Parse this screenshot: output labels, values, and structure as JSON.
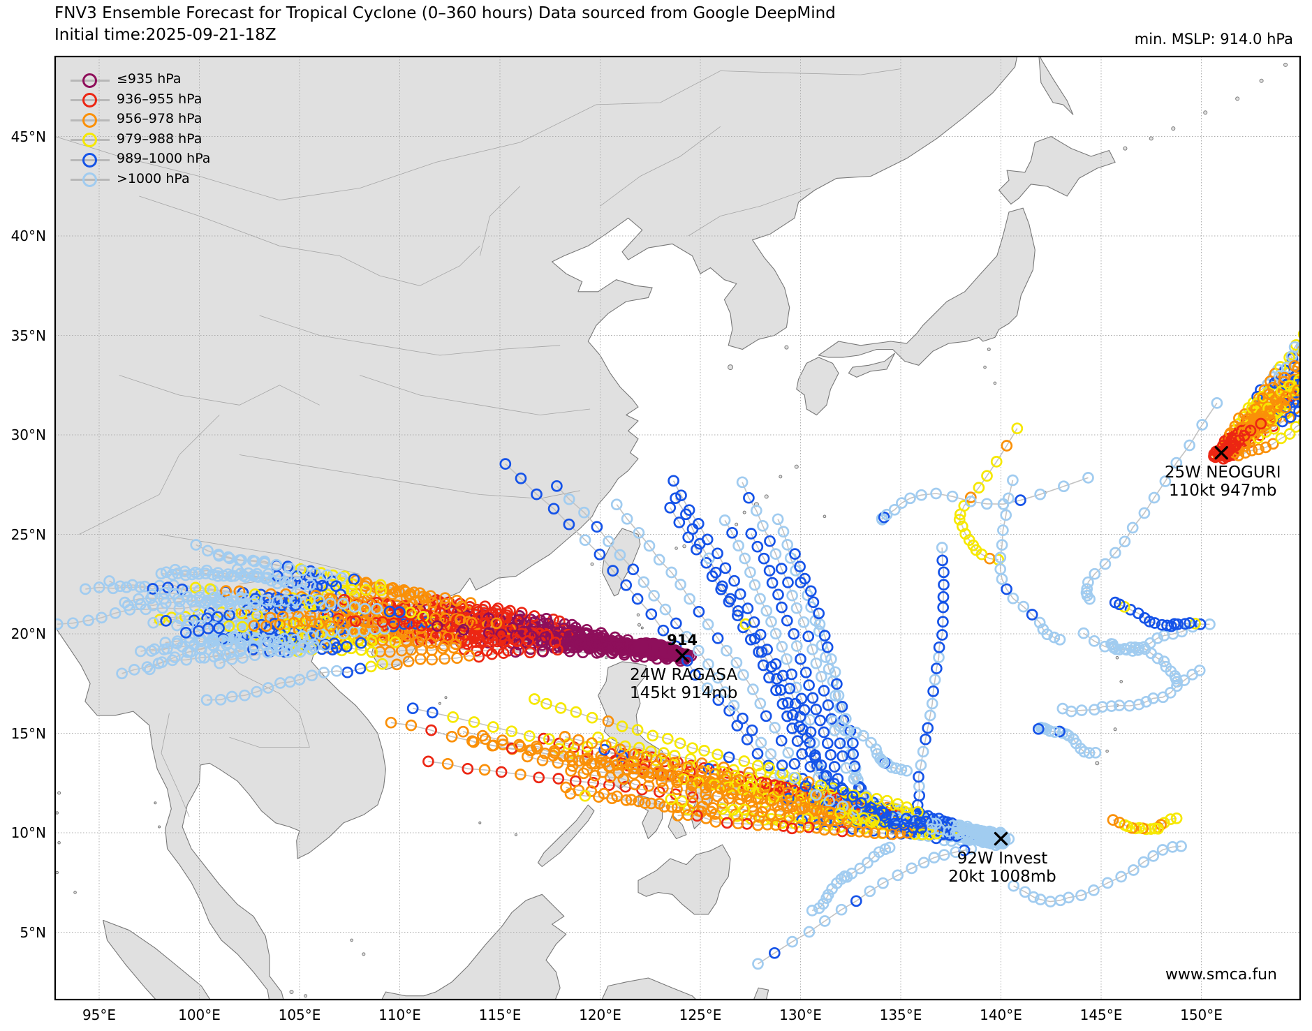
{
  "header": {
    "title": "FNV3 Ensemble Forecast for Tropical Cyclone (0–360 hours) Data sourced from Google DeepMind",
    "initial_time": "Initial time:2025-09-21-18Z",
    "min_mslp": "min. MSLP: 914.0 hPa"
  },
  "legend": {
    "entries": [
      {
        "label": "≤935 hPa",
        "color": "#8E0F5B",
        "max": 935
      },
      {
        "label": "936–955 hPa",
        "color": "#EC2613",
        "max": 955
      },
      {
        "label": "956–978 hPa",
        "color": "#FA9008",
        "max": 978
      },
      {
        "label": "979–988 hPa",
        "color": "#F6E800",
        "max": 988
      },
      {
        "label": "989–1000 hPa",
        "color": "#1553E8",
        "max": 1000
      },
      {
        "label": ">1000 hPa",
        "color": "#A1CCF0",
        "max": null
      }
    ]
  },
  "axes": {
    "lon_ticks": [
      {
        "label": "95°E",
        "value": 95
      },
      {
        "label": "100°E",
        "value": 100
      },
      {
        "label": "105°E",
        "value": 105
      },
      {
        "label": "110°E",
        "value": 110
      },
      {
        "label": "115°E",
        "value": 115
      },
      {
        "label": "120°E",
        "value": 120
      },
      {
        "label": "125°E",
        "value": 125
      },
      {
        "label": "130°E",
        "value": 130
      },
      {
        "label": "135°E",
        "value": 135
      },
      {
        "label": "140°E",
        "value": 140
      },
      {
        "label": "145°E",
        "value": 145
      },
      {
        "label": "150°E",
        "value": 150
      }
    ],
    "lat_ticks": [
      {
        "label": "5°N",
        "value": 5
      },
      {
        "label": "10°N",
        "value": 10
      },
      {
        "label": "15°N",
        "value": 15
      },
      {
        "label": "20°N",
        "value": 20
      },
      {
        "label": "25°N",
        "value": 25
      },
      {
        "label": "30°N",
        "value": 30
      },
      {
        "label": "35°N",
        "value": 35
      },
      {
        "label": "40°N",
        "value": 40
      },
      {
        "label": "45°N",
        "value": 45
      }
    ]
  },
  "storms": [
    {
      "id": "ragasa",
      "marker_label": "914",
      "lines": [
        "24W RAGASA",
        "145kt 914mb"
      ],
      "x_lon": 124.1,
      "x_lat": 18.9
    },
    {
      "id": "neoguri",
      "marker_label": "",
      "lines": [
        "25W NEOGURI",
        "110kt 947mb"
      ],
      "x_lon": 151.0,
      "x_lat": 29.1
    },
    {
      "id": "invest",
      "marker_label": "",
      "lines": [
        "92W Invest",
        "20kt 1008mb"
      ],
      "x_lon": 140.0,
      "x_lat": 9.7
    }
  ],
  "footer": {
    "watermark": "www.smca.fun"
  }
}
